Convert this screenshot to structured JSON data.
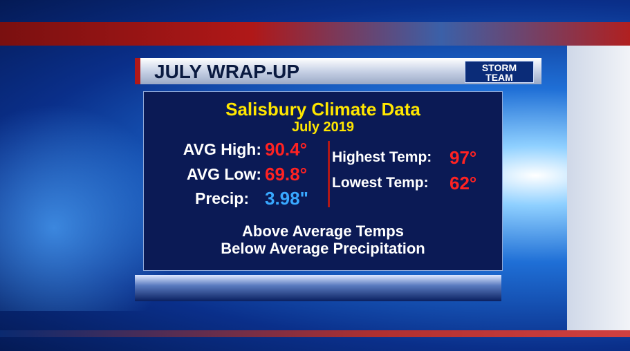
{
  "header": {
    "title": "JULY WRAP-UP",
    "logo": [
      "STORM",
      "TEAM"
    ]
  },
  "panel": {
    "title": "Salisbury Climate Data",
    "subtitle": "July 2019",
    "left": [
      {
        "label": "AVG High:",
        "value": "90.4°"
      },
      {
        "label": "AVG Low:",
        "value": "69.8°"
      },
      {
        "label": "Precip:",
        "value": "3.98\""
      }
    ],
    "right": [
      {
        "label": "Highest Temp:",
        "value": "97°"
      },
      {
        "label": "Lowest Temp:",
        "value": "62°"
      }
    ],
    "summary": [
      "Above Average Temps",
      "Below Average Precipitation"
    ]
  }
}
